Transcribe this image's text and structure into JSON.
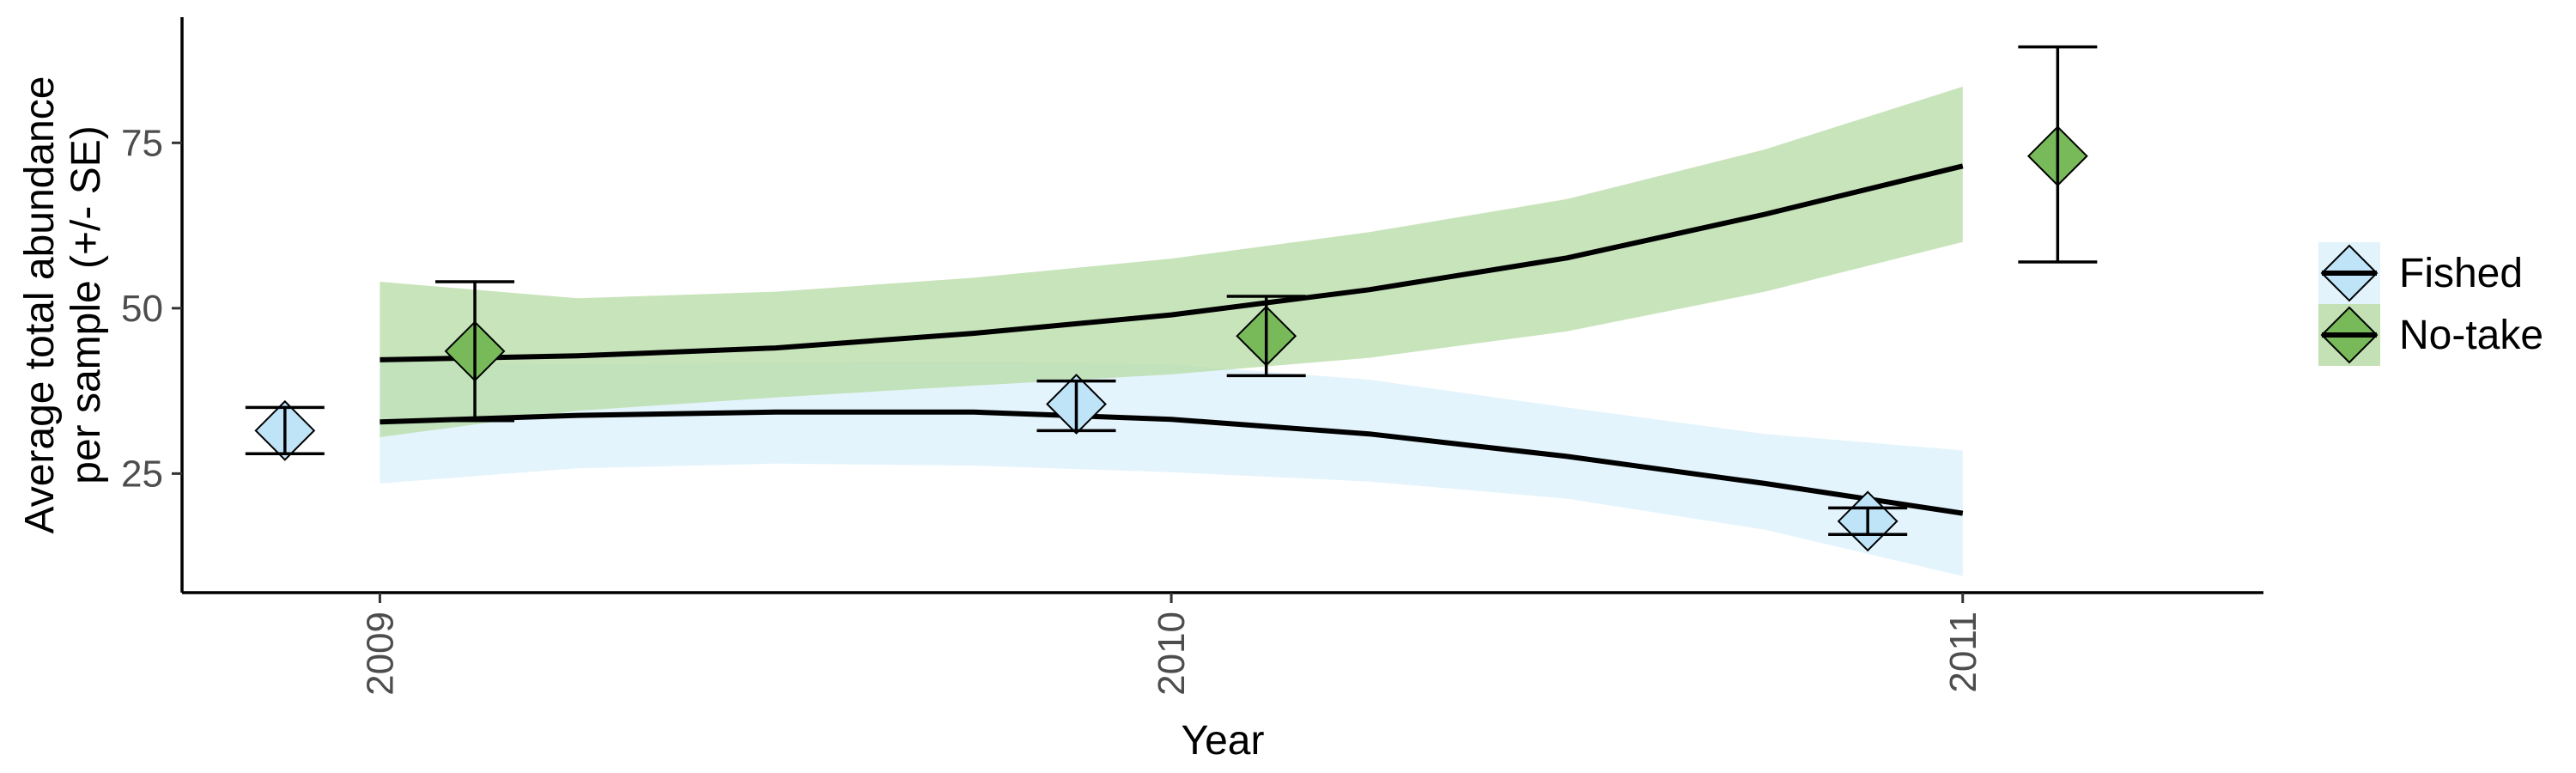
{
  "chart_data": {
    "type": "scatter",
    "xlabel": "Year",
    "ylabel_lines": [
      "Average total abundance",
      "per sample (+/- SE)"
    ],
    "x_ticks": [
      "2009",
      "2010",
      "2011"
    ],
    "y_ticks": [
      25,
      50,
      75
    ],
    "xlim": [
      2008.75,
      2011.38
    ],
    "ylim": [
      7,
      94
    ],
    "grid": false,
    "legend_position": "right",
    "series": [
      {
        "name": "Fished",
        "color": "#BFE4F8",
        "band_color": "#DDF1FB",
        "points": [
          {
            "x": 2008.88,
            "y": 31.5,
            "lo": 28,
            "hi": 35
          },
          {
            "x": 2009.88,
            "y": 35.5,
            "lo": 31.5,
            "hi": 39
          },
          {
            "x": 2010.88,
            "y": 17.8,
            "lo": 15.8,
            "hi": 19.8
          }
        ],
        "fit": {
          "x": [
            2009.0,
            2009.25,
            2009.5,
            2009.75,
            2010.0,
            2010.25,
            2010.5,
            2010.75,
            2011.0
          ],
          "y": [
            32.8,
            33.8,
            34.3,
            34.3,
            33.2,
            31.0,
            27.6,
            23.5,
            19.0
          ],
          "lo": [
            23.5,
            25.8,
            26.5,
            26.2,
            25.2,
            23.8,
            21.2,
            16.5,
            9.5
          ],
          "hi": [
            42.0,
            41.5,
            41.8,
            42.0,
            41.5,
            39.2,
            35.0,
            31.0,
            28.5
          ]
        }
      },
      {
        "name": "No-take",
        "color": "#78BA5A",
        "band_color": "#B8DCA8",
        "points": [
          {
            "x": 2009.12,
            "y": 43.5,
            "lo": 33,
            "hi": 54
          },
          {
            "x": 2010.12,
            "y": 45.8,
            "lo": 39.8,
            "hi": 51.8
          },
          {
            "x": 2011.12,
            "y": 73,
            "lo": 57,
            "hi": 89.5
          }
        ],
        "fit": {
          "x": [
            2009.0,
            2009.25,
            2009.5,
            2009.75,
            2010.0,
            2010.25,
            2010.5,
            2010.75,
            2011.0
          ],
          "y": [
            42.2,
            42.8,
            44.0,
            46.2,
            49.0,
            52.8,
            57.6,
            64.2,
            71.5
          ],
          "lo": [
            30.5,
            34.5,
            36.5,
            38.3,
            40.0,
            42.5,
            46.5,
            52.5,
            60.0
          ],
          "hi": [
            54.0,
            51.5,
            52.5,
            54.6,
            57.5,
            61.5,
            66.5,
            74.0,
            83.5
          ]
        }
      }
    ]
  }
}
